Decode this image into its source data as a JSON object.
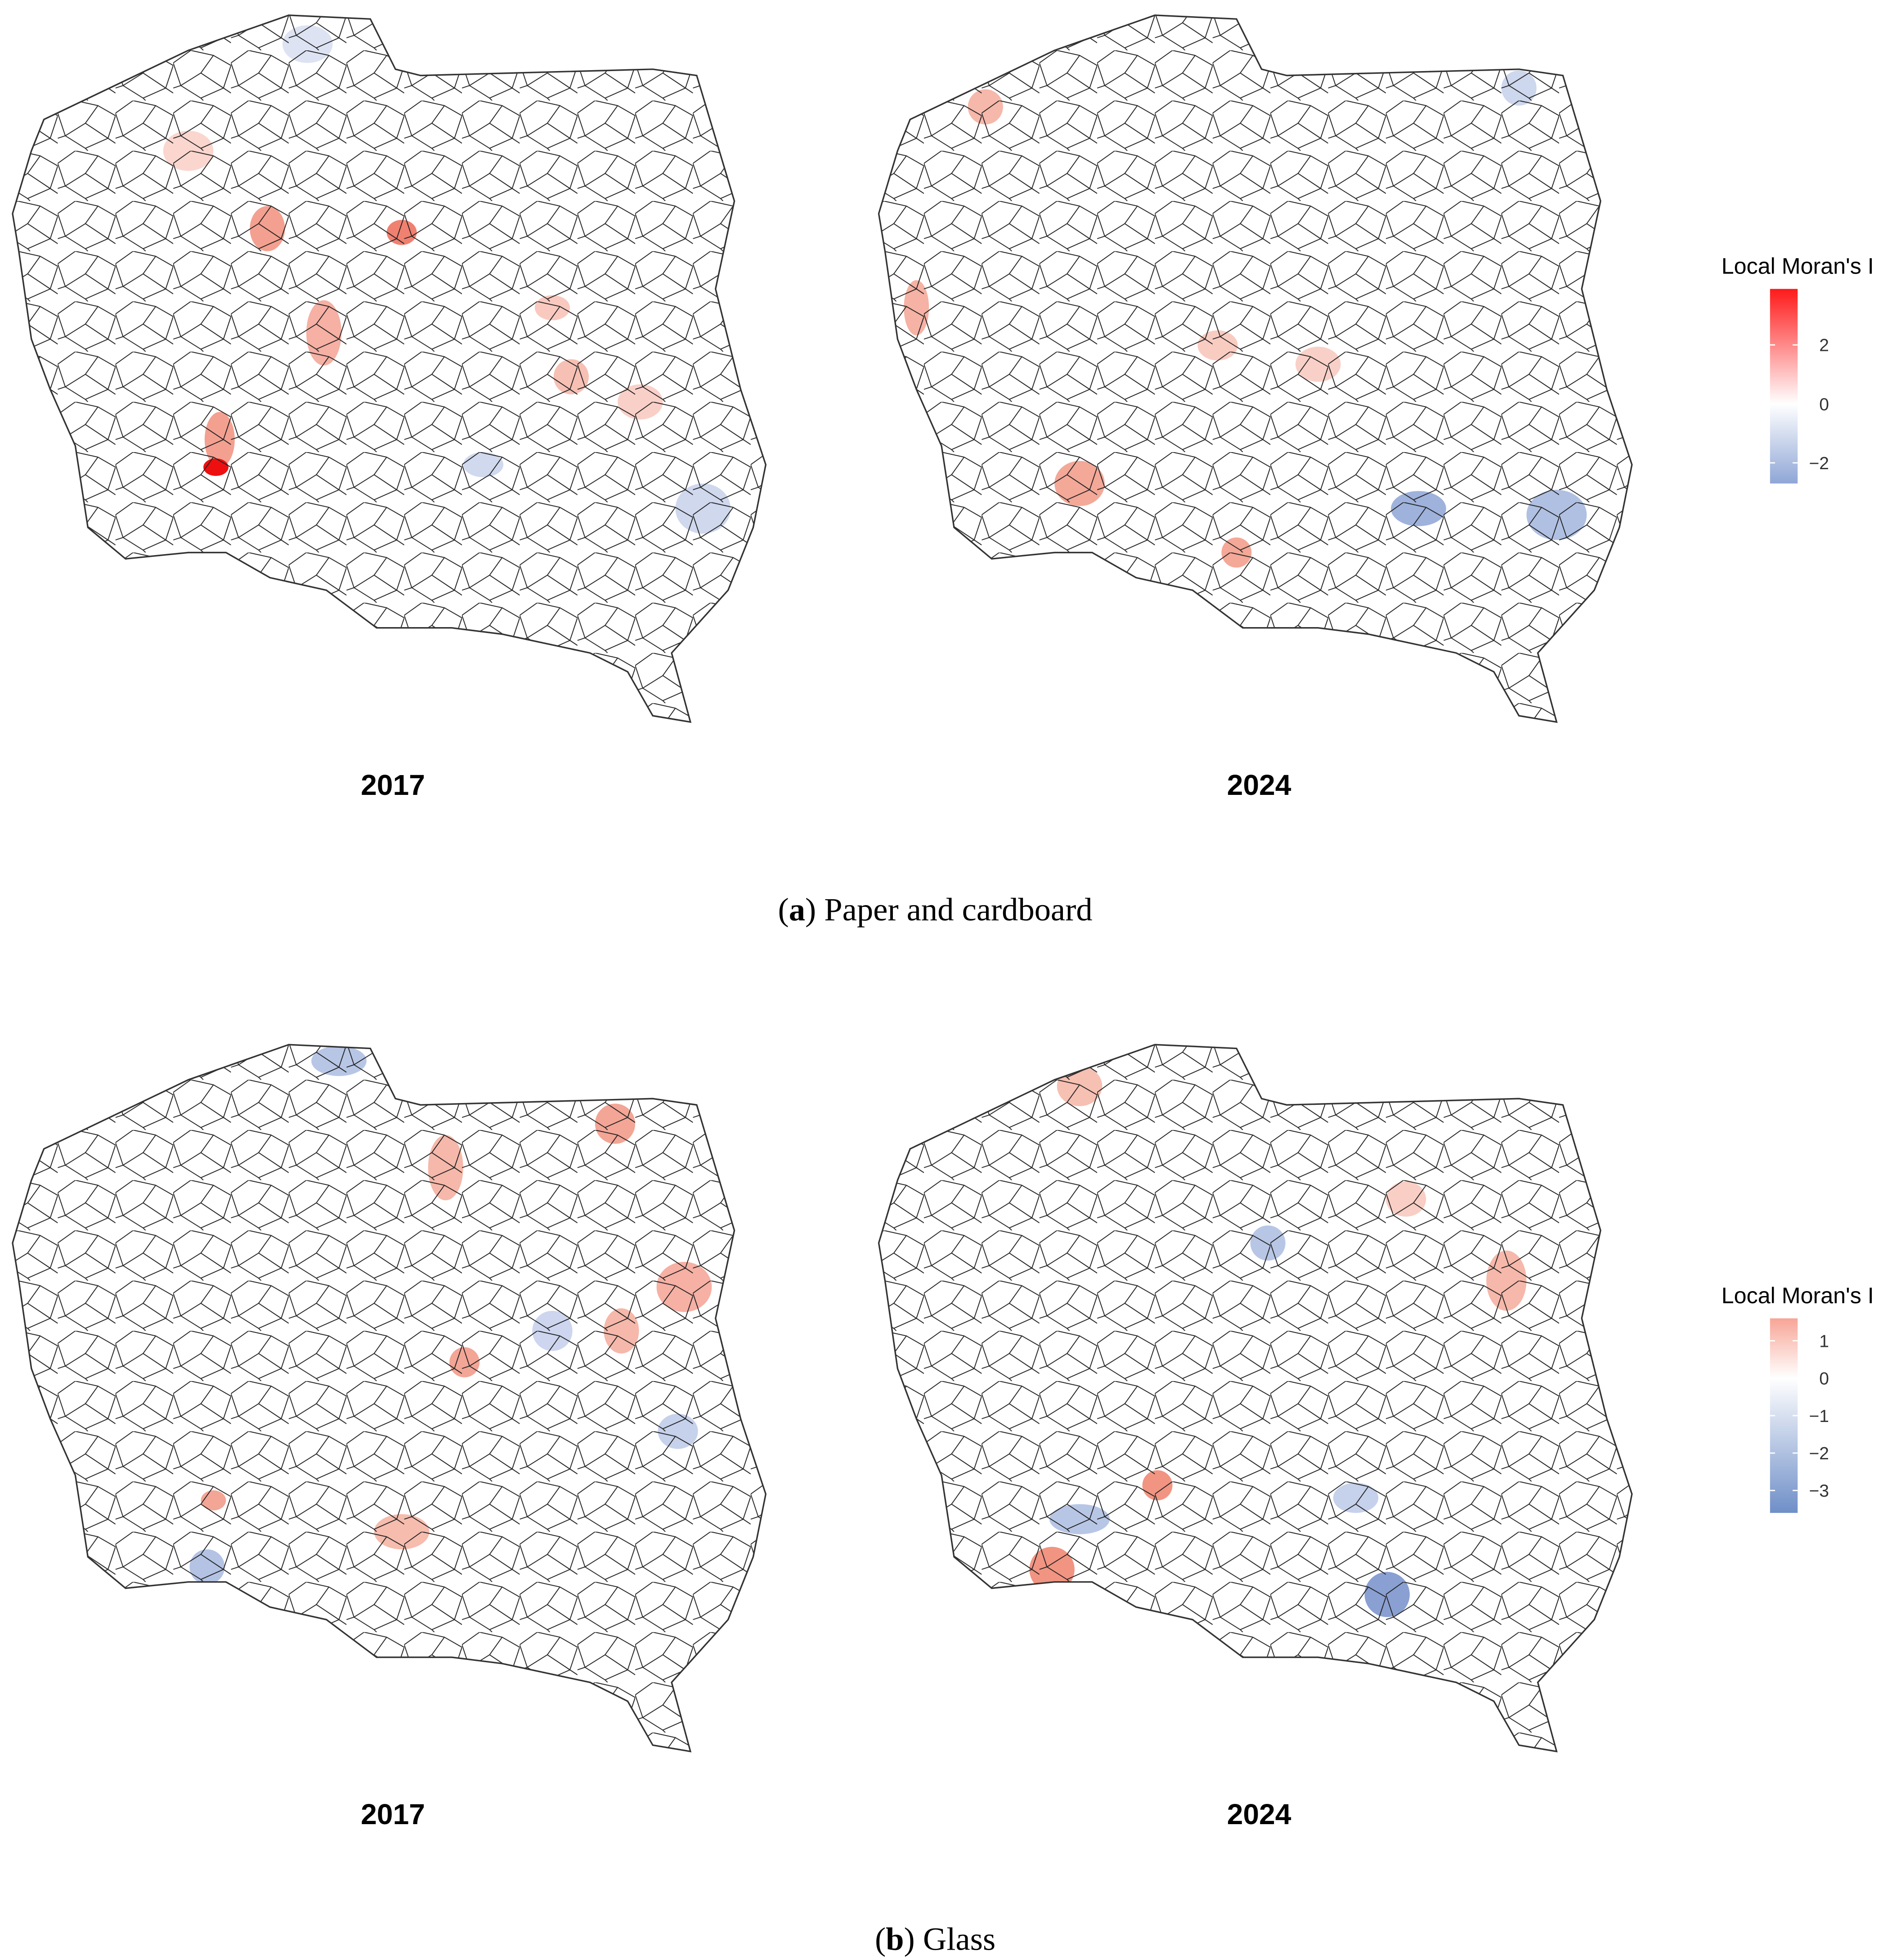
{
  "panels": [
    {
      "caption": [
        "(",
        "a",
        ") Paper and cardboard"
      ],
      "maps": [
        {
          "title": "2017"
        },
        {
          "title": "2024"
        }
      ],
      "legend": {
        "title": "Local Moran's I",
        "limits": [
          -2.7,
          3.9
        ],
        "ticks": [
          2,
          0,
          {
            "value": -2,
            "label": "−2"
          }
        ],
        "low_color": "#8fa6d6",
        "mid_color": "#ffffff",
        "high_color": "#ff1a1a"
      }
    },
    {
      "caption": [
        "(",
        "b",
        ") Glass"
      ],
      "maps": [
        {
          "title": "2017"
        },
        {
          "title": "2024"
        }
      ],
      "legend": {
        "title": "Local Moran's I",
        "limits": [
          -3.6,
          1.6
        ],
        "ticks": [
          1,
          0,
          {
            "value": -1,
            "label": "−1"
          },
          {
            "value": -2,
            "label": "−2"
          },
          {
            "value": -3,
            "label": "−3"
          }
        ],
        "low_color": "#6f8fc8",
        "mid_color": "#ffffff",
        "high_color": "#f7a596"
      }
    }
  ]
}
